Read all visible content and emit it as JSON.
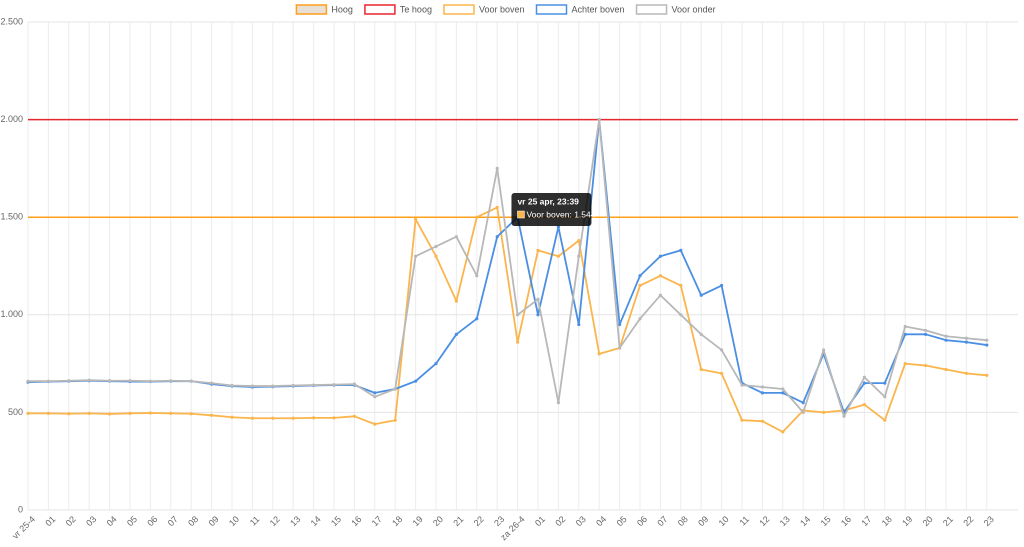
{
  "chart_data": {
    "type": "line",
    "categories": [
      "vr 25-4",
      "01",
      "02",
      "03",
      "04",
      "05",
      "06",
      "07",
      "08",
      "09",
      "10",
      "11",
      "12",
      "13",
      "14",
      "15",
      "16",
      "17",
      "18",
      "19",
      "20",
      "21",
      "22",
      "23",
      "za 26-4",
      "01",
      "02",
      "03",
      "04",
      "05",
      "06",
      "07",
      "08",
      "09",
      "10",
      "11",
      "12",
      "13",
      "14",
      "15",
      "16",
      "17",
      "18",
      "19",
      "20",
      "21",
      "22",
      "23"
    ],
    "ylim": [
      0,
      2500
    ],
    "yticks": [
      {
        "value": 0,
        "label": "0"
      },
      {
        "value": 500,
        "label": "500"
      },
      {
        "value": 1000,
        "label": "1.000"
      },
      {
        "value": 1500,
        "label": "1.500"
      },
      {
        "value": 2000,
        "label": "2.000"
      },
      {
        "value": 2500,
        "label": "2.500"
      }
    ],
    "grid": true,
    "legend": "top",
    "series": [
      {
        "name": "Hoog",
        "color": "#ff9f1a",
        "fill": "#e8e0d6",
        "value": 1500
      },
      {
        "name": "Te hoog",
        "color": "#e8262f",
        "value": 2000
      },
      {
        "name": "Voor boven",
        "color": "#fbb54d",
        "values": [
          495,
          495,
          493,
          495,
          492,
          495,
          497,
          495,
          493,
          485,
          475,
          470,
          470,
          470,
          472,
          472,
          480,
          440,
          460,
          1490,
          1300,
          1070,
          1500,
          1550,
          860,
          1330,
          1300,
          1380,
          800,
          830,
          1150,
          1200,
          1150,
          720,
          700,
          460,
          455,
          400,
          510,
          500,
          510,
          540,
          460,
          750,
          740,
          720,
          700,
          690
        ]
      },
      {
        "name": "Achter boven",
        "color": "#4a8fe3",
        "values": [
          655,
          658,
          660,
          662,
          660,
          658,
          658,
          660,
          660,
          645,
          635,
          630,
          632,
          635,
          638,
          640,
          640,
          600,
          620,
          660,
          750,
          900,
          980,
          1400,
          1500,
          1000,
          1450,
          950,
          2000,
          950,
          1200,
          1300,
          1330,
          1100,
          1150,
          650,
          600,
          600,
          550,
          800,
          500,
          650,
          650,
          900,
          900,
          870,
          860,
          845
        ]
      },
      {
        "name": "Voor onder",
        "color": "#b8b8b8",
        "values": [
          660,
          660,
          662,
          665,
          662,
          662,
          660,
          662,
          660,
          650,
          638,
          635,
          635,
          638,
          640,
          642,
          645,
          580,
          620,
          1300,
          1350,
          1400,
          1200,
          1750,
          1000,
          1080,
          550,
          1300,
          2000,
          830,
          980,
          1100,
          1000,
          900,
          820,
          640,
          630,
          620,
          500,
          820,
          480,
          680,
          580,
          940,
          920,
          890,
          880,
          870
        ]
      }
    ],
    "tooltip": {
      "title": "vr 25 apr, 23:39",
      "text": "Voor boven: 1.544"
    }
  }
}
